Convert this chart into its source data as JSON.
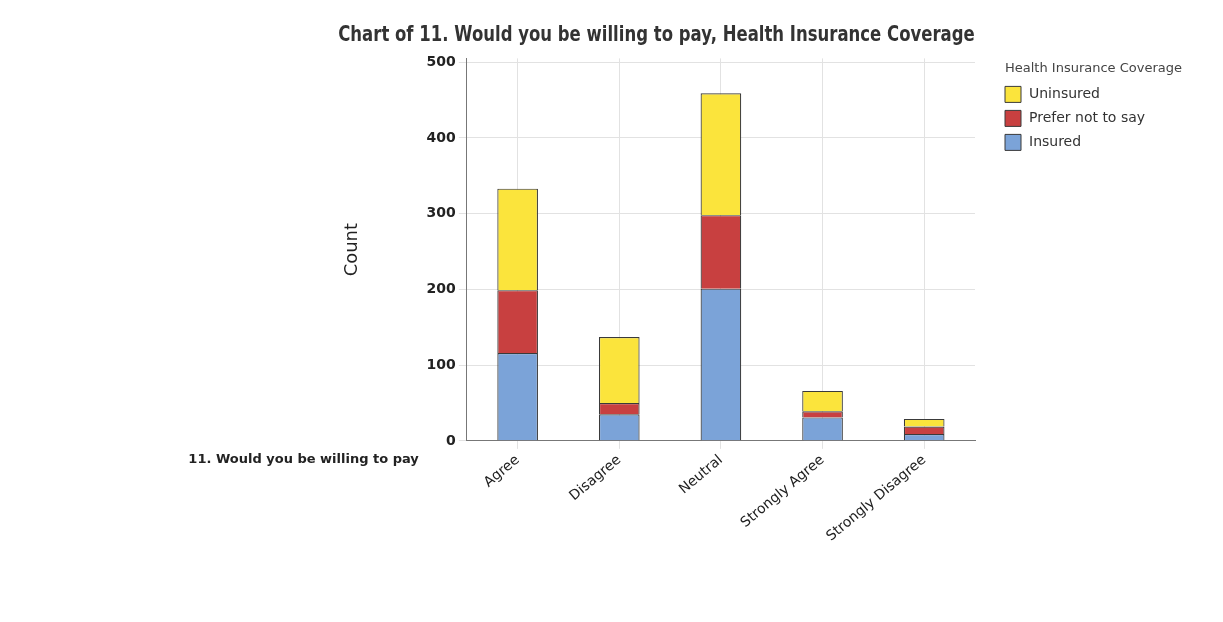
{
  "chart_data": {
    "type": "bar",
    "stacked": true,
    "title": "Chart of 11. Would you be willing to pay, Health Insurance Coverage",
    "xlabel": "11. Would you be willing to pay",
    "ylabel": "Count",
    "legend_title": "Health Insurance Coverage",
    "legend": "right",
    "grid": true,
    "categories": [
      "Agree",
      "Disagree",
      "Neutral",
      "Strongly Agree",
      "Strongly Disagree"
    ],
    "ylim": [
      0,
      505
    ],
    "yticks": [
      0,
      100,
      200,
      300,
      400,
      500
    ],
    "series": [
      {
        "name": "Insured",
        "color": "#7ba3d8",
        "values": [
          116,
          35,
          201,
          31,
          9
        ]
      },
      {
        "name": "Prefer not to say",
        "color": "#c84040",
        "values": [
          83,
          15,
          97,
          8,
          10
        ]
      },
      {
        "name": "Uninsured",
        "color": "#fbe43c",
        "values": [
          134,
          87,
          161,
          27,
          10
        ]
      }
    ]
  }
}
